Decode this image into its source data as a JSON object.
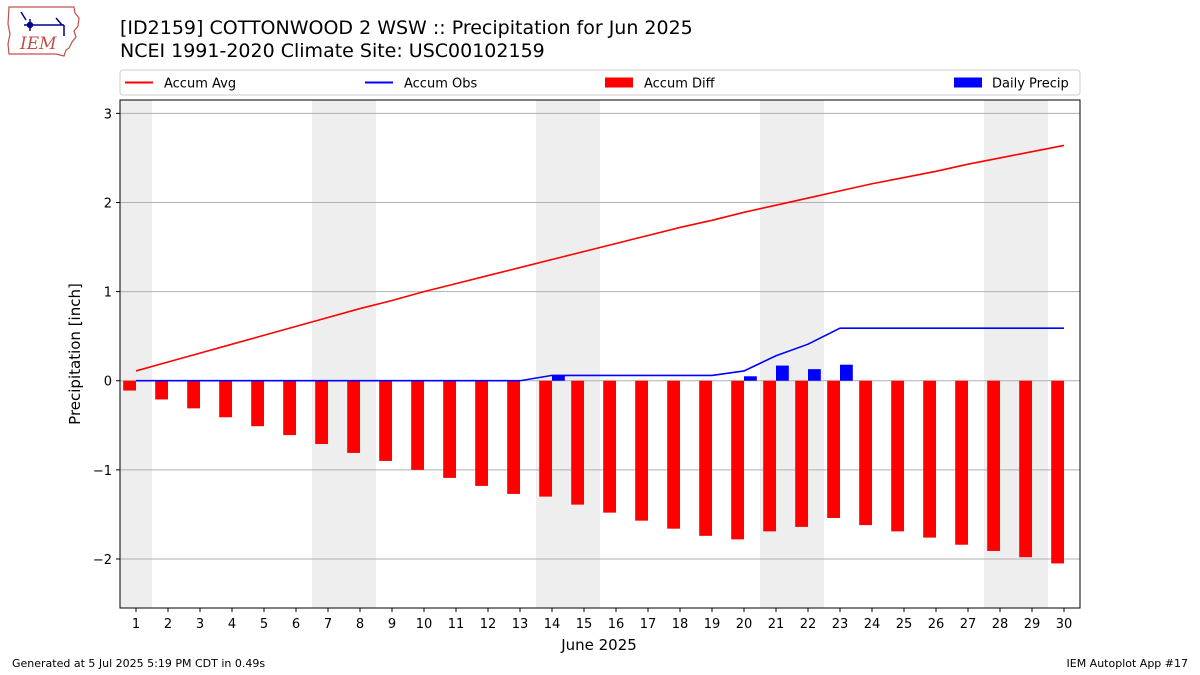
{
  "header": {
    "title_line1": "[ID2159] COTTONWOOD 2 WSW :: Precipitation for Jun 2025",
    "title_line2": "NCEI 1991-2020 Climate Site: USC00102159",
    "logo_text": "IEM"
  },
  "footer": {
    "left": "Generated at 5 Jul 2025 5:19 PM CDT in 0.49s",
    "right": "IEM Autoplot App #17"
  },
  "chart_data": {
    "type": "bar",
    "xlabel": "June 2025",
    "ylabel": "Precipitation [inch]",
    "days": [
      1,
      2,
      3,
      4,
      5,
      6,
      7,
      8,
      9,
      10,
      11,
      12,
      13,
      14,
      15,
      16,
      17,
      18,
      19,
      20,
      21,
      22,
      23,
      24,
      25,
      26,
      27,
      28,
      29,
      30
    ],
    "ylim": [
      -2.55,
      3.15
    ],
    "yticks": [
      3,
      2,
      1,
      0,
      -1,
      -2
    ],
    "ytick_labels": [
      "3",
      "2",
      "1",
      "0",
      "−1",
      "−2"
    ],
    "weekend_days": [
      1,
      7,
      8,
      14,
      15,
      21,
      22,
      28,
      29
    ],
    "grid": true,
    "legend_position": "top",
    "series": [
      {
        "name": "Accum Avg",
        "kind": "line",
        "color": "#ff0000",
        "values": [
          0.11,
          0.21,
          0.31,
          0.41,
          0.51,
          0.61,
          0.71,
          0.81,
          0.9,
          1.0,
          1.09,
          1.18,
          1.27,
          1.36,
          1.45,
          1.54,
          1.63,
          1.72,
          1.8,
          1.89,
          1.97,
          2.05,
          2.13,
          2.21,
          2.28,
          2.35,
          2.43,
          2.5,
          2.57,
          2.64
        ]
      },
      {
        "name": "Accum Obs",
        "kind": "line",
        "color": "#0000ff",
        "values": [
          0,
          0,
          0,
          0,
          0,
          0,
          0,
          0,
          0,
          0,
          0,
          0,
          0,
          0.06,
          0.06,
          0.06,
          0.06,
          0.06,
          0.06,
          0.11,
          0.28,
          0.41,
          0.59,
          0.59,
          0.59,
          0.59,
          0.59,
          0.59,
          0.59,
          0.59
        ]
      },
      {
        "name": "Accum Diff",
        "kind": "bar",
        "color": "#ff0000",
        "values": [
          -0.11,
          -0.21,
          -0.31,
          -0.41,
          -0.51,
          -0.61,
          -0.71,
          -0.81,
          -0.9,
          -1.0,
          -1.09,
          -1.18,
          -1.27,
          -1.3,
          -1.39,
          -1.48,
          -1.57,
          -1.66,
          -1.74,
          -1.78,
          -1.69,
          -1.64,
          -1.54,
          -1.62,
          -1.69,
          -1.76,
          -1.84,
          -1.91,
          -1.98,
          -2.05
        ]
      },
      {
        "name": "Daily Precip",
        "kind": "bar",
        "color": "#0000ff",
        "values": [
          0,
          0,
          0,
          0,
          0,
          0,
          0,
          0,
          0,
          0,
          0,
          0,
          0,
          0.06,
          0,
          0,
          0,
          0,
          0,
          0.05,
          0.17,
          0.13,
          0.18,
          0,
          0,
          0,
          0,
          0,
          0,
          0
        ]
      }
    ]
  }
}
